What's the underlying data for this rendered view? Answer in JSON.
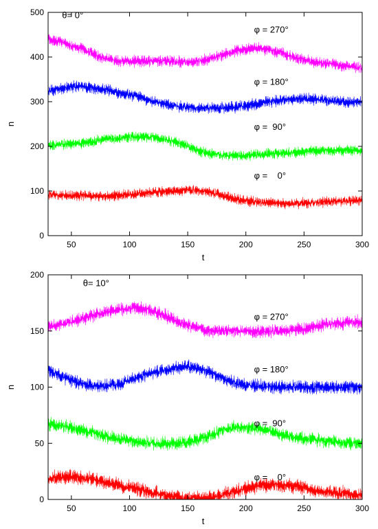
{
  "chart_data": [
    {
      "type": "line",
      "xlabel": "t",
      "ylabel": "n",
      "xlim": [
        30,
        300
      ],
      "ylim": [
        0,
        500
      ],
      "xticks": [
        50,
        100,
        150,
        200,
        250,
        300
      ],
      "yticks": [
        0,
        100,
        200,
        300,
        400,
        500
      ],
      "grid": false,
      "annotations": [
        {
          "text": "θ= 0°",
          "x": 42,
          "y": 487
        },
        {
          "text": "φ = 270°",
          "x": 207,
          "y": 455
        },
        {
          "text": "φ = 180°",
          "x": 207,
          "y": 338
        },
        {
          "text": "φ =  90°",
          "x": 207,
          "y": 237
        },
        {
          "text": "φ =    0°",
          "x": 207,
          "y": 128
        }
      ],
      "series": [
        {
          "color": "#ff00ff",
          "noise": 22,
          "x": [
            30,
            40,
            50,
            60,
            70,
            80,
            90,
            100,
            110,
            120,
            130,
            140,
            150,
            160,
            170,
            180,
            190,
            200,
            210,
            220,
            230,
            240,
            250,
            260,
            270,
            280,
            290,
            300
          ],
          "y": [
            440,
            435,
            425,
            418,
            405,
            396,
            392,
            390,
            391,
            392,
            392,
            390,
            388,
            390,
            397,
            405,
            412,
            418,
            420,
            417,
            410,
            400,
            393,
            388,
            385,
            382,
            378,
            376
          ]
        },
        {
          "color": "#0000ff",
          "noise": 22,
          "x": [
            30,
            40,
            50,
            60,
            70,
            80,
            90,
            100,
            110,
            120,
            130,
            140,
            150,
            160,
            170,
            180,
            190,
            200,
            210,
            220,
            230,
            240,
            250,
            260,
            270,
            280,
            290,
            300
          ],
          "y": [
            322,
            330,
            333,
            333,
            330,
            326,
            320,
            315,
            310,
            300,
            295,
            290,
            287,
            285,
            285,
            286,
            288,
            291,
            295,
            300,
            303,
            306,
            307,
            305,
            303,
            301,
            300,
            300
          ]
        },
        {
          "color": "#00ff00",
          "noise": 20,
          "x": [
            30,
            40,
            50,
            60,
            70,
            80,
            90,
            100,
            110,
            120,
            130,
            140,
            150,
            160,
            170,
            180,
            190,
            200,
            210,
            220,
            230,
            240,
            250,
            260,
            270,
            280,
            290,
            300
          ],
          "y": [
            202,
            204,
            205,
            208,
            212,
            216,
            218,
            220,
            222,
            220,
            215,
            210,
            200,
            190,
            184,
            180,
            179,
            179,
            181,
            183,
            185,
            186,
            188,
            190,
            191,
            191,
            190,
            190
          ]
        },
        {
          "color": "#ff0000",
          "noise": 20,
          "x": [
            30,
            40,
            50,
            60,
            70,
            80,
            90,
            100,
            110,
            120,
            130,
            140,
            150,
            160,
            170,
            180,
            190,
            200,
            210,
            220,
            230,
            240,
            250,
            260,
            270,
            280,
            290,
            300
          ],
          "y": [
            92,
            91,
            90,
            90,
            89,
            89,
            90,
            92,
            95,
            97,
            99,
            100,
            101,
            101,
            96,
            90,
            83,
            78,
            75,
            73,
            72,
            72,
            73,
            74,
            76,
            77,
            78,
            80
          ]
        }
      ]
    },
    {
      "type": "line",
      "xlabel": "t",
      "ylabel": "n",
      "xlim": [
        30,
        300
      ],
      "ylim": [
        0,
        200
      ],
      "xticks": [
        50,
        100,
        150,
        200,
        250,
        300
      ],
      "yticks": [
        0,
        50,
        100,
        150,
        200
      ],
      "grid": false,
      "annotations": [
        {
          "text": "θ= 10°",
          "x": 60,
          "y": 190
        },
        {
          "text": "φ = 270°",
          "x": 207,
          "y": 160
        },
        {
          "text": "φ = 180°",
          "x": 207,
          "y": 113
        },
        {
          "text": "φ =  90°",
          "x": 207,
          "y": 65
        },
        {
          "text": "φ =    0°",
          "x": 207,
          "y": 17
        }
      ],
      "series": [
        {
          "color": "#ff00ff",
          "noise": 10,
          "x": [
            30,
            40,
            50,
            60,
            70,
            80,
            90,
            100,
            110,
            120,
            130,
            140,
            150,
            160,
            170,
            180,
            190,
            200,
            210,
            220,
            230,
            240,
            250,
            260,
            270,
            280,
            290,
            300
          ],
          "y": [
            154,
            156,
            158,
            161,
            164,
            167,
            169,
            170,
            170,
            168,
            164,
            159,
            155,
            152,
            150,
            150,
            150,
            150,
            150,
            150,
            150,
            151,
            152,
            154,
            156,
            157,
            158,
            158
          ]
        },
        {
          "color": "#0000ff",
          "noise": 10,
          "x": [
            30,
            40,
            50,
            60,
            70,
            80,
            90,
            100,
            110,
            120,
            130,
            140,
            150,
            160,
            170,
            180,
            190,
            200,
            210,
            220,
            230,
            240,
            250,
            260,
            270,
            280,
            290,
            300
          ],
          "y": [
            115,
            110,
            106,
            103,
            101,
            101,
            103,
            106,
            110,
            113,
            115,
            117,
            118,
            117,
            113,
            108,
            104,
            102,
            101,
            100,
            100,
            100,
            100,
            100,
            100,
            100,
            100,
            100
          ]
        },
        {
          "color": "#00ff00",
          "noise": 10,
          "x": [
            30,
            40,
            50,
            60,
            70,
            80,
            90,
            100,
            110,
            120,
            130,
            140,
            150,
            160,
            170,
            180,
            190,
            200,
            210,
            220,
            230,
            240,
            250,
            260,
            270,
            280,
            290,
            300
          ],
          "y": [
            67,
            66,
            64,
            62,
            59,
            56,
            54,
            52,
            51,
            50,
            50,
            50,
            51,
            53,
            57,
            62,
            64,
            64,
            63,
            61,
            58,
            56,
            54,
            53,
            52,
            51,
            50,
            50
          ]
        },
        {
          "color": "#ff0000",
          "noise": 11,
          "x": [
            30,
            40,
            50,
            60,
            70,
            80,
            90,
            100,
            110,
            120,
            130,
            140,
            150,
            160,
            170,
            180,
            190,
            200,
            210,
            220,
            230,
            240,
            250,
            260,
            270,
            280,
            290,
            300
          ],
          "y": [
            18,
            20,
            20,
            19,
            17,
            15,
            13,
            11,
            9,
            6,
            4,
            2,
            1,
            1,
            2,
            4,
            7,
            10,
            12,
            13,
            13,
            12,
            10,
            8,
            7,
            6,
            5,
            4
          ]
        }
      ]
    }
  ]
}
